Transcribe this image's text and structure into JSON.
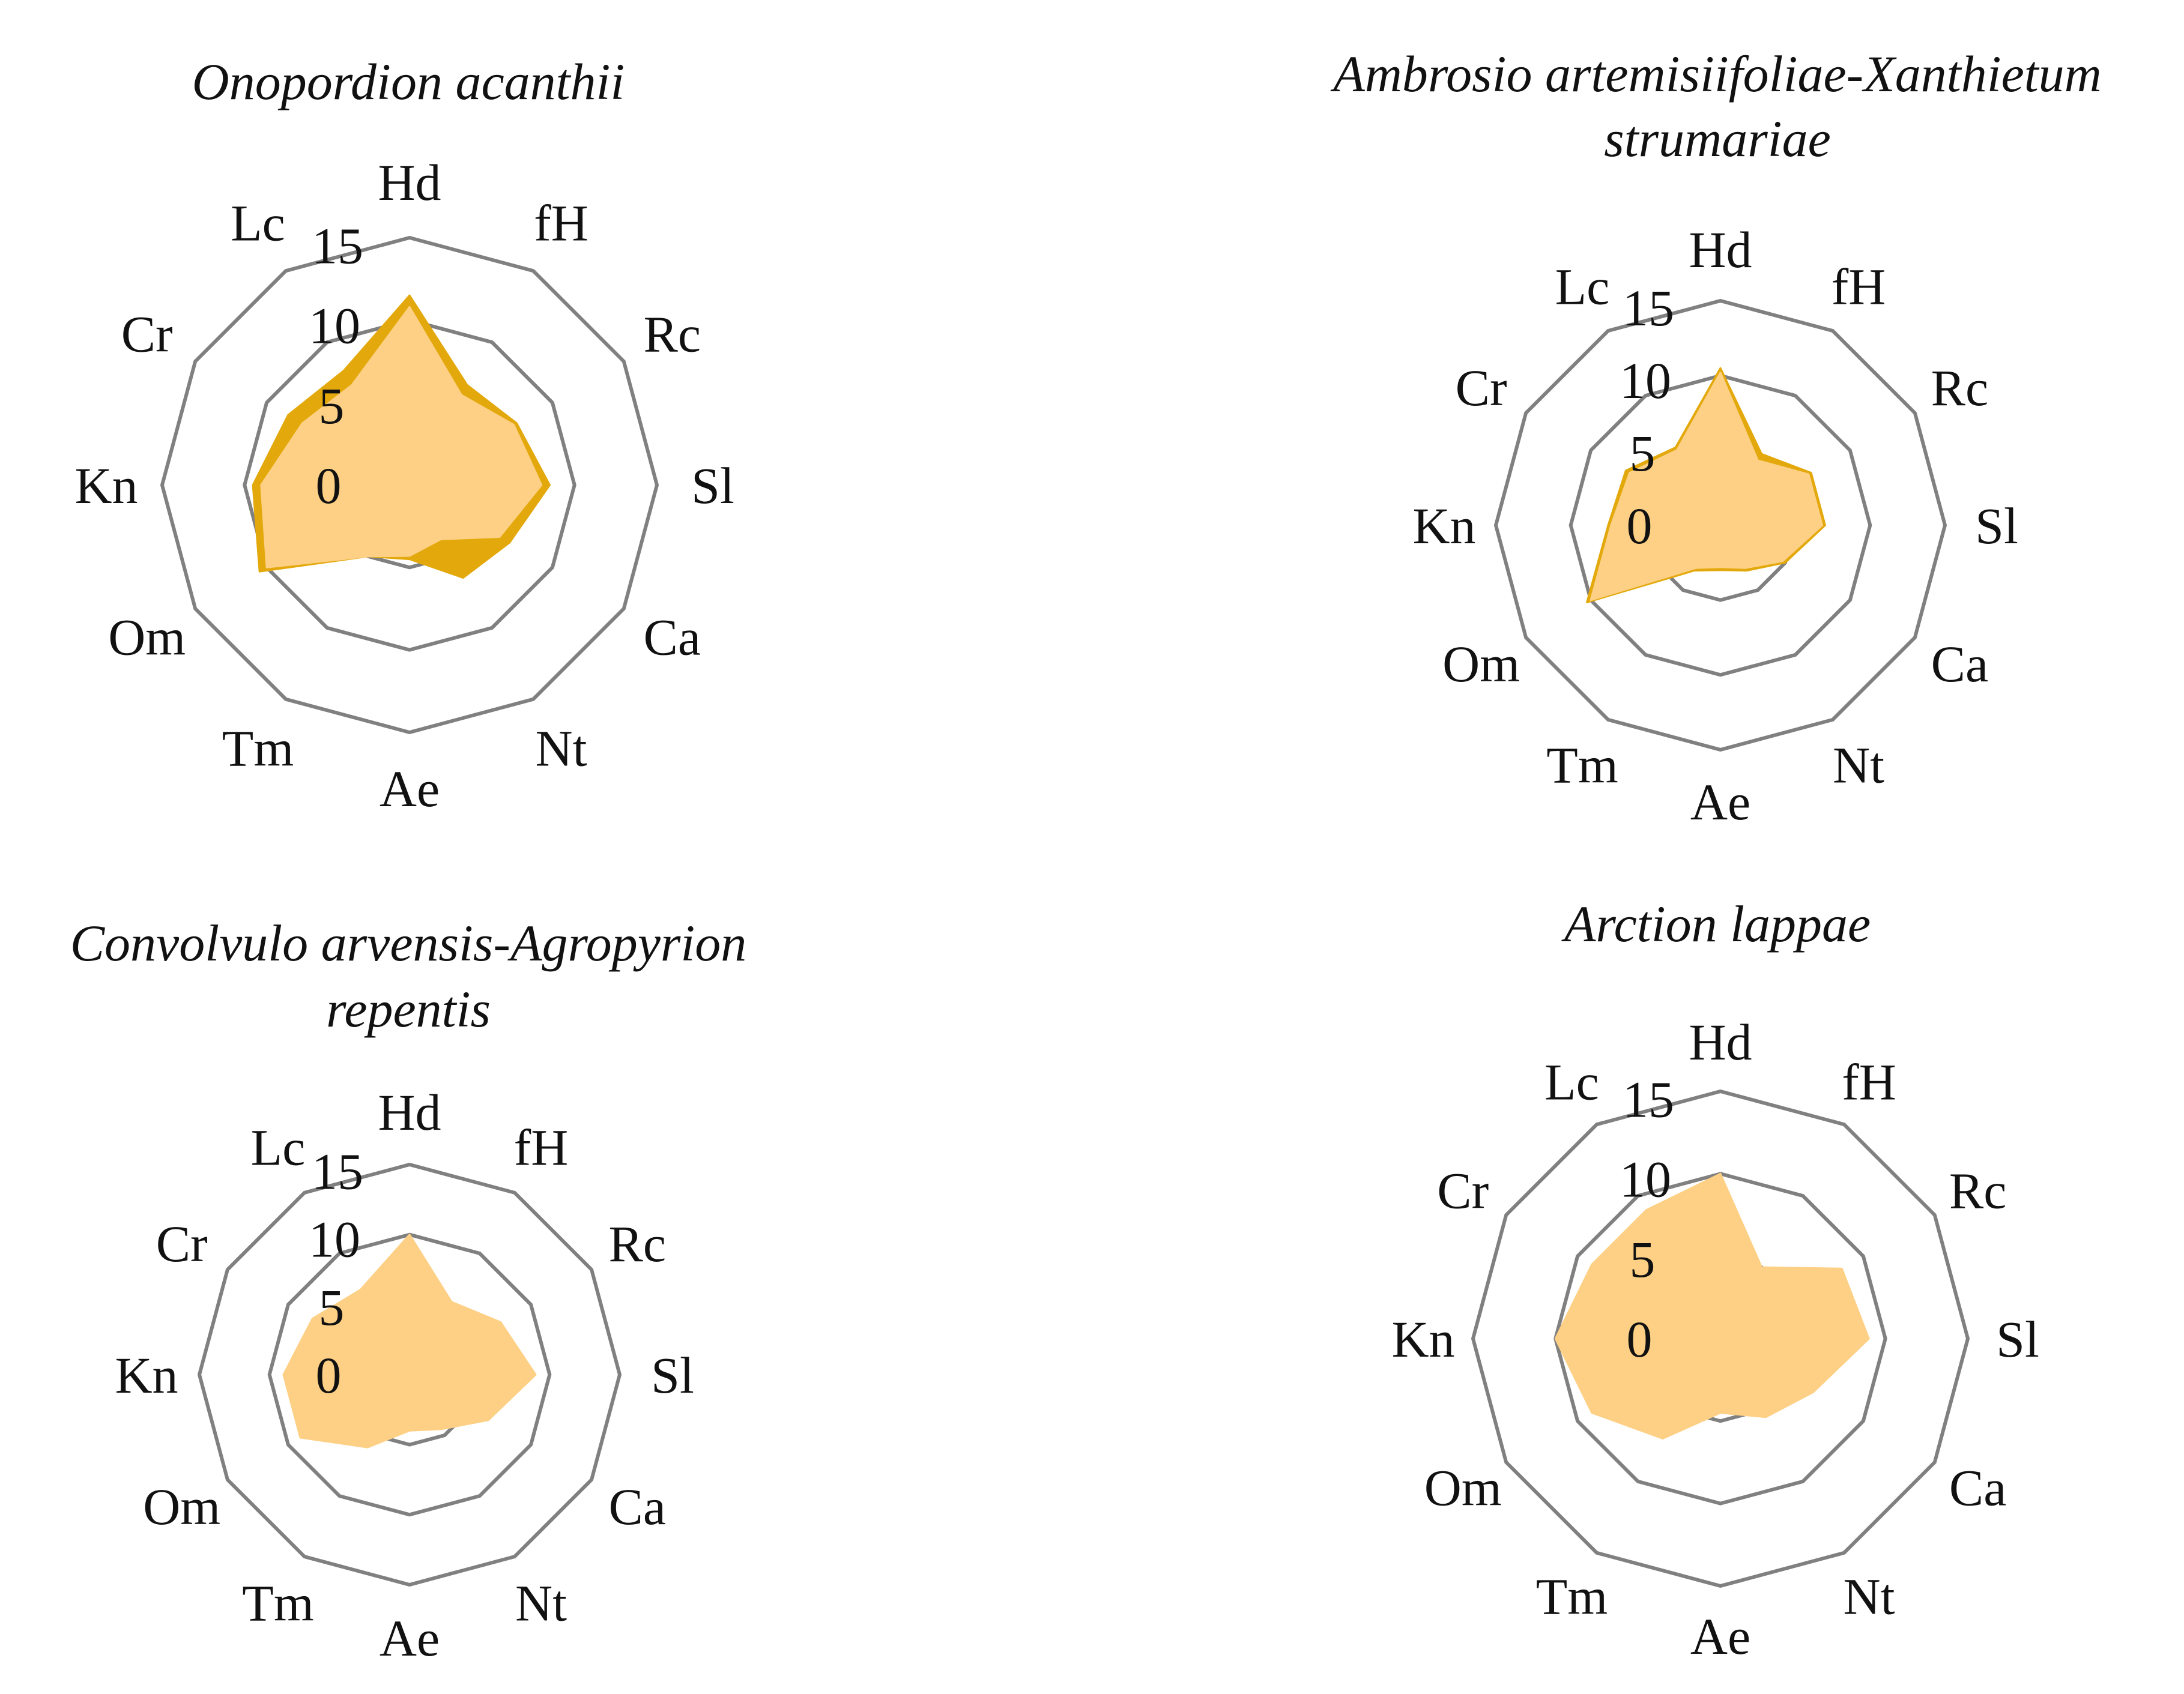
{
  "colors": {
    "series_a": "#e3a90c",
    "series_b": "#fdd085",
    "grid": "#808080",
    "text": "#111111"
  },
  "chart_data": [
    {
      "type": "radar",
      "title": [
        "Onopordion acanthii"
      ],
      "axes": [
        "Hd",
        "fH",
        "Rc",
        "Sl",
        "Ca",
        "Nt",
        "Ae",
        "Tm",
        "Om",
        "Kn",
        "Cr",
        "Lc"
      ],
      "ticks": [
        "0",
        "5",
        "10",
        "15"
      ],
      "rmin": 0,
      "rmax": 15,
      "grid_rings": [
        5,
        10,
        15
      ],
      "series": [
        {
          "values": [
            11.5,
            7.0,
            7.5,
            8.5,
            7.0,
            6.5,
            4.5,
            5.0,
            10.5,
            9.5,
            8.5,
            8.0
          ]
        },
        {
          "values": [
            10.8,
            6.3,
            7.3,
            8.0,
            6.3,
            3.8,
            4.3,
            5.0,
            10.0,
            9.0,
            7.5,
            7.0
          ]
        }
      ]
    },
    {
      "type": "radar",
      "title": [
        "Ambrosio artemisiifoliae-Xanthietum",
        "strumariae"
      ],
      "axes": [
        "Hd",
        "fH",
        "Rc",
        "Sl",
        "Ca",
        "Nt",
        "Ae",
        "Tm",
        "Om",
        "Kn",
        "Cr",
        "Lc"
      ],
      "ticks": [
        "0",
        "5",
        "10",
        "15"
      ],
      "rmin": 0,
      "rmax": 15,
      "grid_rings": [
        5,
        10,
        15
      ],
      "series": [
        {
          "values": [
            10.5,
            5.5,
            7.0,
            7.0,
            5.0,
            3.5,
            3.0,
            3.5,
            10.3,
            7.5,
            7.3,
            6.0
          ]
        },
        {
          "values": [
            10.2,
            5.0,
            6.8,
            6.8,
            4.8,
            3.3,
            2.8,
            3.3,
            10.0,
            7.3,
            7.0,
            5.8
          ]
        }
      ]
    },
    {
      "type": "radar",
      "title": [
        "Convolvulo arvensis-Agropyrion",
        "repentis"
      ],
      "axes": [
        "Hd",
        "fH",
        "Rc",
        "Sl",
        "Ca",
        "Nt",
        "Ae",
        "Tm",
        "Om",
        "Kn",
        "Cr",
        "Lc"
      ],
      "ticks": [
        "0",
        "5",
        "10",
        "15"
      ],
      "rmin": 0,
      "rmax": 15,
      "grid_rings": [
        5,
        10,
        15
      ],
      "series": [
        {
          "values": [
            0,
            0,
            0,
            0,
            0,
            0,
            0,
            0,
            0,
            0,
            0,
            0
          ]
        },
        {
          "values": [
            10.0,
            6.0,
            7.5,
            9.0,
            6.5,
            4.5,
            4.0,
            6.0,
            9.0,
            9.0,
            8.0,
            7.0
          ]
        }
      ]
    },
    {
      "type": "radar",
      "title": [
        "Arction lappae"
      ],
      "axes": [
        "Hd",
        "fH",
        "Rc",
        "Sl",
        "Ca",
        "Nt",
        "Ae",
        "Tm",
        "Om",
        "Kn",
        "Cr",
        "Lc"
      ],
      "ticks": [
        "0",
        "5",
        "10",
        "15"
      ],
      "rmin": 0,
      "rmax": 15,
      "grid_rings": [
        5,
        10,
        15
      ],
      "series": [
        {
          "values": [
            0,
            0,
            0,
            0,
            0,
            0,
            0,
            0,
            0,
            0,
            0,
            0
          ]
        },
        {
          "values": [
            10.0,
            5.0,
            8.5,
            9.0,
            6.5,
            5.5,
            4.5,
            7.0,
            9.0,
            10.0,
            9.0,
            9.0
          ]
        }
      ]
    }
  ]
}
